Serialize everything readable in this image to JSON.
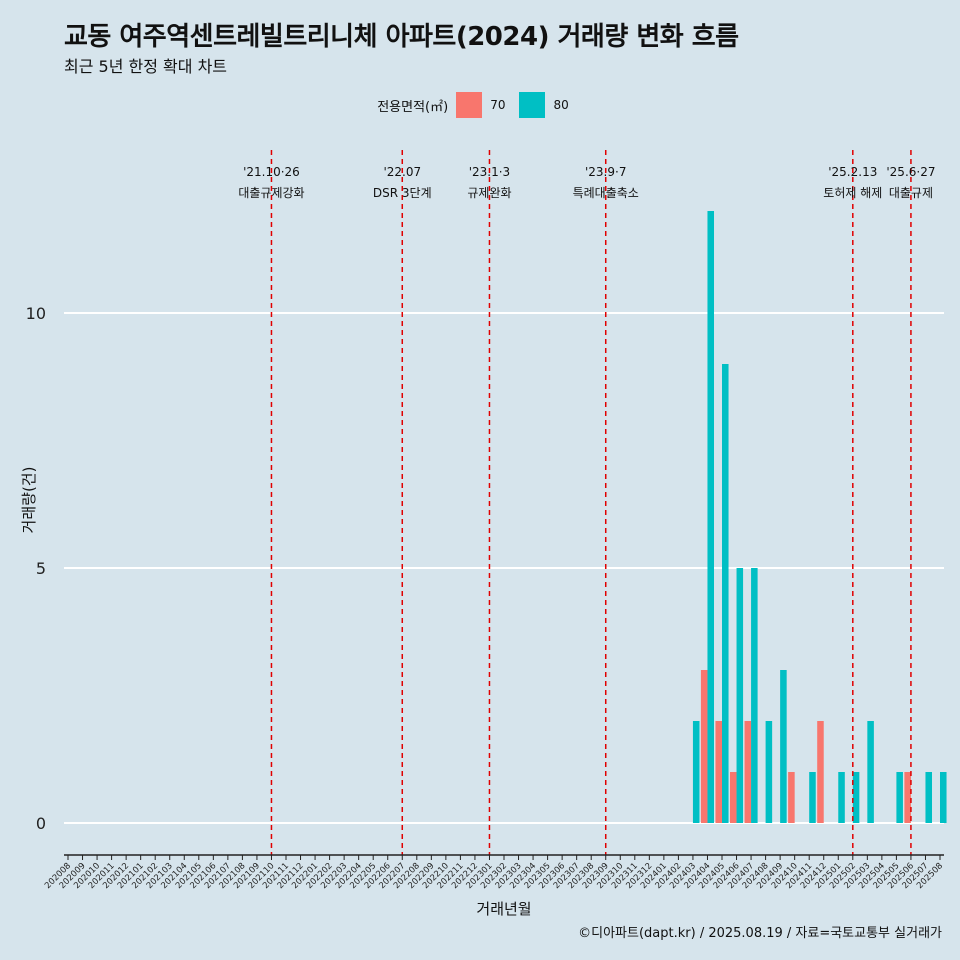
{
  "title": "교동 여주역센트레빌트리니체 아파트(2024) 거래량 변화 흐름",
  "subtitle": "최근 5년 한정 확대 차트",
  "legend": {
    "title": "전용면적(㎡)",
    "items": [
      {
        "label": "70",
        "color": "#f8766d"
      },
      {
        "label": "80",
        "color": "#00bfc4"
      }
    ]
  },
  "caption": "©디아파트(dapt.kr) / 2025.08.19 / 자료=국토교통부 실거래가",
  "chart_data": {
    "type": "bar",
    "xlabel": "거래년월",
    "ylabel": "거래량(건)",
    "ylim": [
      0,
      12
    ],
    "yticks": [
      0,
      5,
      10
    ],
    "grid": "horizontal",
    "legend_position": "top",
    "categories": [
      "202008",
      "202009",
      "202010",
      "202011",
      "202012",
      "202101",
      "202102",
      "202103",
      "202104",
      "202105",
      "202106",
      "202107",
      "202108",
      "202109",
      "202110",
      "202111",
      "202112",
      "202201",
      "202202",
      "202203",
      "202204",
      "202205",
      "202206",
      "202207",
      "202208",
      "202209",
      "202210",
      "202211",
      "202212",
      "202301",
      "202302",
      "202303",
      "202304",
      "202305",
      "202306",
      "202307",
      "202308",
      "202309",
      "202310",
      "202311",
      "202312",
      "202401",
      "202402",
      "202403",
      "202404",
      "202405",
      "202406",
      "202407",
      "202408",
      "202409",
      "202410",
      "202411",
      "202412",
      "202501",
      "202502",
      "202503",
      "202504",
      "202505",
      "202506",
      "202507",
      "202508"
    ],
    "series": [
      {
        "name": "70",
        "color": "#f8766d",
        "values": [
          0,
          0,
          0,
          0,
          0,
          0,
          0,
          0,
          0,
          0,
          0,
          0,
          0,
          0,
          0,
          0,
          0,
          0,
          0,
          0,
          0,
          0,
          0,
          0,
          0,
          0,
          0,
          0,
          0,
          0,
          0,
          0,
          0,
          0,
          0,
          0,
          0,
          0,
          0,
          0,
          0,
          0,
          0,
          0,
          3,
          2,
          1,
          2,
          0,
          0,
          1,
          0,
          2,
          0,
          0,
          0,
          0,
          0,
          1,
          0,
          0
        ]
      },
      {
        "name": "80",
        "color": "#00bfc4",
        "values": [
          0,
          0,
          0,
          0,
          0,
          0,
          0,
          0,
          0,
          0,
          0,
          0,
          0,
          0,
          0,
          0,
          0,
          0,
          0,
          0,
          0,
          0,
          0,
          0,
          0,
          0,
          0,
          0,
          0,
          0,
          0,
          0,
          0,
          0,
          0,
          0,
          0,
          0,
          0,
          0,
          0,
          0,
          0,
          2,
          12,
          9,
          5,
          5,
          2,
          3,
          0,
          1,
          0,
          1,
          1,
          2,
          0,
          1,
          0,
          1,
          1
        ]
      }
    ],
    "annotations": [
      {
        "month": "202110",
        "date": "'21.10·26",
        "label": "대출규제강화"
      },
      {
        "month": "202207",
        "date": "'22.07",
        "label": "DSR 3단계"
      },
      {
        "month": "202301",
        "date": "'23.1·3",
        "label": "규제완화"
      },
      {
        "month": "202309",
        "date": "'23.9·7",
        "label": "특례대출축소"
      },
      {
        "month": "202502",
        "date": "'25.2.13",
        "label": "토허제 해제"
      },
      {
        "month": "202506",
        "date": "'25.6·27",
        "label": "대출규제"
      }
    ]
  }
}
